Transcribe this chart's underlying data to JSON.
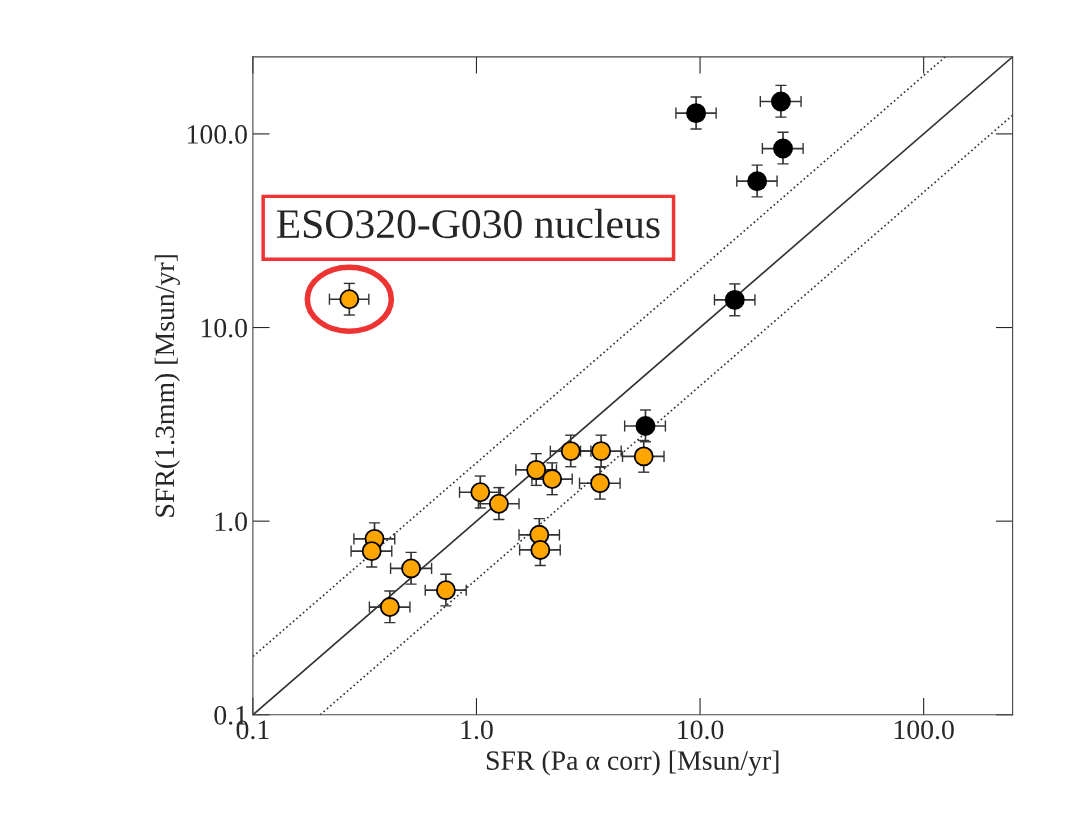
{
  "chart_data": {
    "type": "scatter",
    "xlabel": "SFR (Pa α corr) [Msun/yr]",
    "ylabel": "SFR(1.3mm) [Msun/yr]",
    "log": "xy",
    "xlim": [
      0.1,
      250
    ],
    "ylim": [
      0.1,
      250
    ],
    "xticks": [
      {
        "value": 0.1,
        "label": "0.1"
      },
      {
        "value": 1,
        "label": "1.0"
      },
      {
        "value": 10,
        "label": "10.0"
      },
      {
        "value": 100,
        "label": "100.0"
      }
    ],
    "yticks": [
      {
        "value": 0.1,
        "label": "0.1"
      },
      {
        "value": 1,
        "label": "1.0"
      },
      {
        "value": 10,
        "label": "10.0"
      },
      {
        "value": 100,
        "label": "100.0"
      }
    ],
    "marker": "circle",
    "annotations": [
      {
        "text": "ESO320-G030 nucleus",
        "x": 0.27,
        "y": 14
      }
    ],
    "series": [
      {
        "type": "line",
        "marker": "none",
        "color": "#333333",
        "line_style": "solid",
        "x": [
          0.1,
          250
        ],
        "values": [
          0.1,
          250
        ]
      },
      {
        "type": "line",
        "marker": "none",
        "color": "#333333",
        "line_style": "dotted",
        "x": [
          0.1,
          125
        ],
        "values": [
          0.2,
          250
        ]
      },
      {
        "type": "line",
        "marker": "none",
        "color": "#333333",
        "line_style": "dotted",
        "x": [
          0.2,
          250
        ],
        "values": [
          0.1,
          125
        ]
      },
      {
        "color": "#000000",
        "x": [
          9.6,
          23,
          23.5,
          18,
          14.3,
          5.7
        ],
        "values": [
          128,
          147,
          84,
          57,
          13.9,
          3.1
        ],
        "xerrors": [
          [
            7.8,
            11.8
          ],
          [
            18.6,
            28.3
          ],
          [
            19,
            28.9
          ],
          [
            14.6,
            22.1
          ],
          [
            11.6,
            17.6
          ],
          [
            4.6,
            7
          ]
        ],
        "errors": [
          [
            106,
            155
          ],
          [
            122,
            178
          ],
          [
            70,
            102
          ],
          [
            47.3,
            69
          ],
          [
            11.5,
            16.8
          ],
          [
            2.57,
            3.75
          ]
        ]
      },
      {
        "color": "#ffa500",
        "x": [
          0.27,
          0.35,
          0.34,
          0.51,
          0.41,
          0.73,
          1.04,
          1.26,
          1.85,
          2.18,
          2.64,
          3.61,
          3.57,
          5.6,
          1.91,
          1.93
        ],
        "values": [
          14,
          0.81,
          0.7,
          0.57,
          0.36,
          0.44,
          1.41,
          1.23,
          1.84,
          1.65,
          2.3,
          2.3,
          1.57,
          2.16,
          0.85,
          0.71
        ],
        "xerrors": [
          [
            0.22,
            0.33
          ],
          [
            0.283,
            0.431
          ],
          [
            0.275,
            0.418
          ],
          [
            0.413,
            0.63
          ],
          [
            0.332,
            0.504
          ],
          [
            0.59,
            0.9
          ],
          [
            0.84,
            1.28
          ],
          [
            1.02,
            1.55
          ],
          [
            1.5,
            2.28
          ],
          [
            1.77,
            2.68
          ],
          [
            2.14,
            3.25
          ],
          [
            2.92,
            4.44
          ],
          [
            2.89,
            4.39
          ],
          [
            4.5,
            6.9
          ],
          [
            1.55,
            2.35
          ],
          [
            1.56,
            2.37
          ]
        ],
        "errors": [
          [
            11.6,
            16.9
          ],
          [
            0.67,
            0.98
          ],
          [
            0.58,
            0.85
          ],
          [
            0.473,
            0.69
          ],
          [
            0.299,
            0.436
          ],
          [
            0.365,
            0.532
          ],
          [
            1.17,
            1.71
          ],
          [
            1.02,
            1.49
          ],
          [
            1.53,
            2.23
          ],
          [
            1.37,
            2
          ],
          [
            1.91,
            2.78
          ],
          [
            1.91,
            2.78
          ],
          [
            1.3,
            1.9
          ],
          [
            1.79,
            2.61
          ],
          [
            0.85,
            1.03
          ],
          [
            0.59,
            0.71
          ]
        ]
      }
    ]
  }
}
